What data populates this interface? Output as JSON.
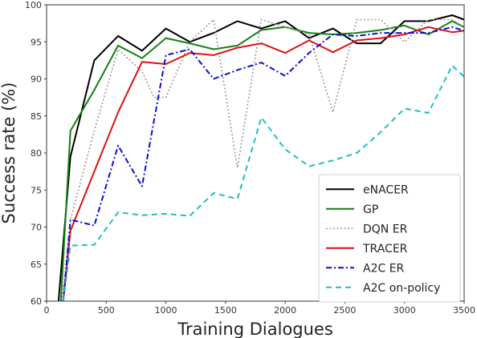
{
  "chart_data": {
    "type": "line",
    "xlabel": "Training Dialogues",
    "ylabel": "Success rate (%)",
    "xlim": [
      0,
      3500
    ],
    "ylim": [
      60,
      100
    ],
    "xticks": [
      0,
      500,
      1000,
      1500,
      2000,
      2500,
      3000,
      3500
    ],
    "yticks": [
      60,
      65,
      70,
      75,
      80,
      85,
      90,
      95,
      100
    ],
    "grid": false,
    "legend_position": "lower-right",
    "series": [
      {
        "name": "eNACER",
        "color": "#000000",
        "dash": "solid",
        "x": [
          100,
          200,
          400,
          600,
          800,
          1000,
          1200,
          1400,
          1600,
          1800,
          2000,
          2200,
          2400,
          2600,
          2800,
          3000,
          3200,
          3400,
          3500
        ],
        "y": [
          60,
          79.5,
          92.5,
          95.8,
          93.8,
          96.8,
          95.0,
          96.2,
          97.8,
          96.8,
          97.8,
          95.5,
          96.8,
          94.8,
          94.8,
          97.8,
          97.8,
          98.6,
          98.0
        ]
      },
      {
        "name": "GP",
        "color": "#138013",
        "dash": "solid",
        "x": [
          120,
          200,
          400,
          600,
          800,
          1000,
          1200,
          1400,
          1600,
          1800,
          2000,
          2200,
          2400,
          2600,
          2800,
          3000,
          3200,
          3400,
          3500
        ],
        "y": [
          60,
          83.0,
          88.5,
          94.5,
          92.8,
          95.5,
          94.8,
          94.0,
          94.5,
          96.6,
          97.0,
          96.2,
          96.0,
          96.2,
          96.6,
          97.2,
          96.0,
          97.8,
          97.0
        ]
      },
      {
        "name": "DQN ER",
        "color": "#9a9a9a",
        "dash": "dotted",
        "x": [
          130,
          200,
          400,
          600,
          800,
          900,
          1000,
          1200,
          1400,
          1600,
          1800,
          2000,
          2200,
          2400,
          2600,
          2800,
          3000,
          3200,
          3400,
          3500
        ],
        "y": [
          60,
          71.0,
          83.0,
          94.0,
          91.0,
          87.5,
          87.5,
          95.0,
          98.0,
          78.0,
          98.0,
          97.0,
          96.0,
          85.5,
          98.0,
          98.0,
          95.0,
          98.0,
          98.0,
          97.0
        ]
      },
      {
        "name": "TRACER",
        "color": "#e01010",
        "dash": "solid",
        "x": [
          140,
          200,
          400,
          600,
          800,
          1000,
          1200,
          1400,
          1600,
          1800,
          2000,
          2200,
          2400,
          2600,
          2800,
          3000,
          3200,
          3400,
          3500
        ],
        "y": [
          60,
          69.5,
          77.5,
          85.5,
          92.3,
          92.0,
          93.5,
          93.2,
          94.2,
          94.8,
          93.5,
          95.2,
          93.6,
          95.2,
          95.5,
          96.0,
          97.0,
          96.3,
          96.5
        ]
      },
      {
        "name": "A2C ER",
        "color": "#0b0bd8",
        "dash": "dashdot",
        "x": [
          140,
          200,
          400,
          600,
          800,
          1000,
          1200,
          1400,
          1600,
          1800,
          2000,
          2200,
          2400,
          2600,
          2800,
          3000,
          3200,
          3400,
          3500
        ],
        "y": [
          60,
          71.0,
          70.2,
          81.0,
          75.5,
          93.2,
          94.0,
          90.0,
          91.2,
          92.2,
          90.4,
          93.5,
          96.0,
          95.8,
          96.2,
          96.2,
          96.2,
          97.0,
          96.5
        ]
      },
      {
        "name": "A2C on-policy",
        "color": "#1fbfbf",
        "dash": "dashed",
        "x": [
          140,
          200,
          400,
          600,
          800,
          1000,
          1200,
          1400,
          1600,
          1800,
          2000,
          2200,
          2400,
          2600,
          2800,
          3000,
          3200,
          3400,
          3500
        ],
        "y": [
          60,
          67.5,
          67.6,
          72.0,
          71.6,
          71.8,
          71.5,
          74.6,
          73.8,
          84.8,
          80.5,
          78.2,
          79.0,
          80.0,
          82.8,
          86.0,
          85.4,
          91.8,
          90.3
        ]
      }
    ]
  }
}
